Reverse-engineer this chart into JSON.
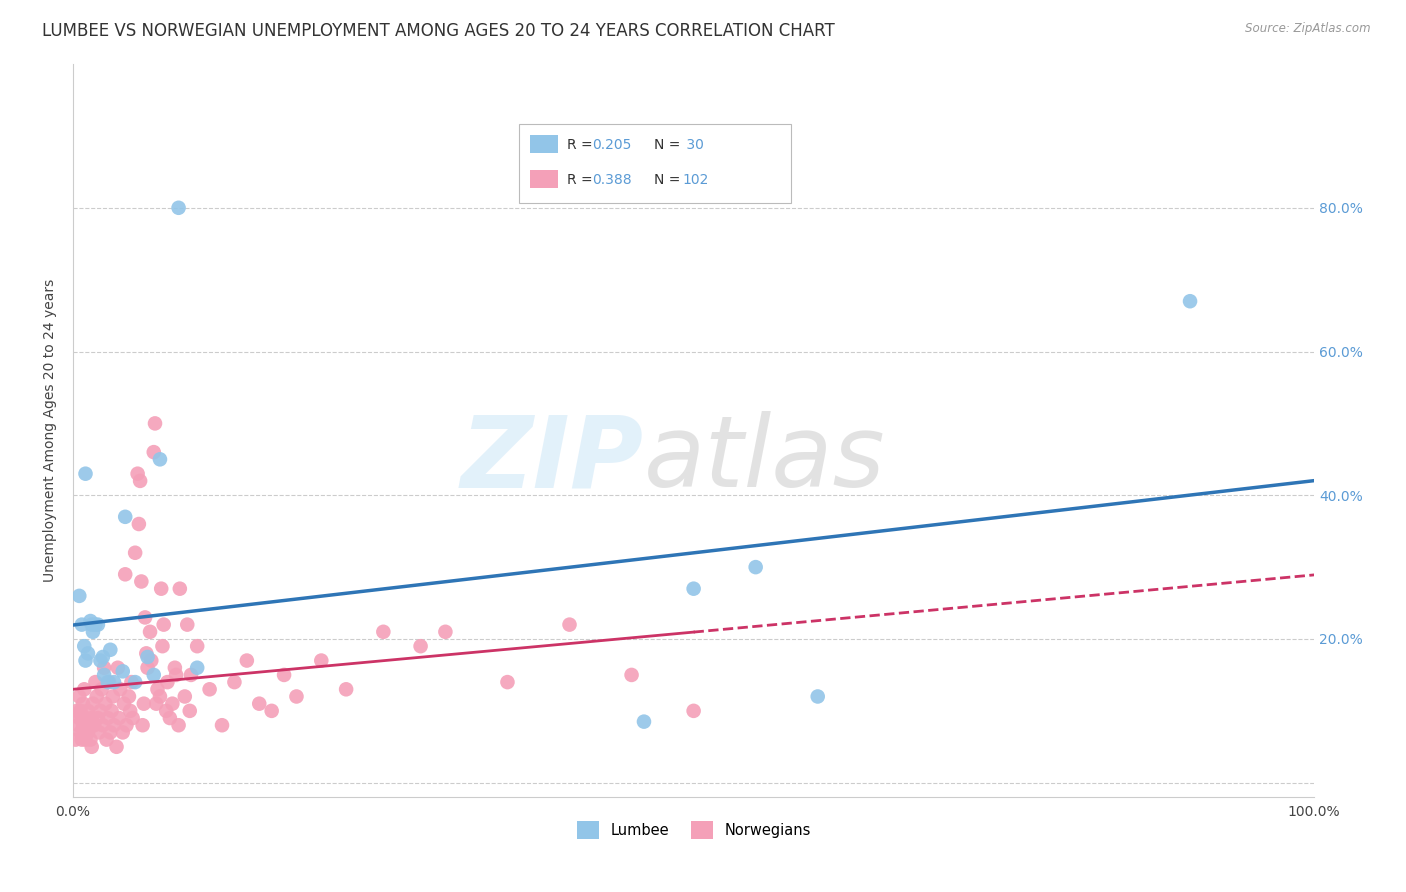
{
  "title": "LUMBEE VS NORWEGIAN UNEMPLOYMENT AMONG AGES 20 TO 24 YEARS CORRELATION CHART",
  "source": "Source: ZipAtlas.com",
  "ylabel": "Unemployment Among Ages 20 to 24 years",
  "lumbee_color": "#92C5E8",
  "norw_color": "#F4A0B8",
  "lumbee_line_color": "#2E75B6",
  "norw_line_color": "#CC3366",
  "background_color": "#ffffff",
  "grid_color": "#cccccc",
  "title_fontsize": 12,
  "axis_fontsize": 10,
  "tick_fontsize": 10,
  "lumbee_points": [
    [
      0.5,
      26.0
    ],
    [
      0.7,
      22.0
    ],
    [
      0.9,
      19.0
    ],
    [
      1.0,
      17.0
    ],
    [
      1.2,
      18.0
    ],
    [
      1.4,
      22.5
    ],
    [
      1.5,
      22.0
    ],
    [
      1.6,
      21.0
    ],
    [
      1.8,
      22.0
    ],
    [
      2.0,
      22.0
    ],
    [
      2.2,
      17.0
    ],
    [
      2.4,
      17.5
    ],
    [
      2.5,
      15.0
    ],
    [
      2.8,
      14.0
    ],
    [
      3.0,
      18.5
    ],
    [
      3.3,
      14.0
    ],
    [
      4.0,
      15.5
    ],
    [
      4.2,
      37.0
    ],
    [
      5.0,
      14.0
    ],
    [
      6.0,
      17.5
    ],
    [
      6.5,
      15.0
    ],
    [
      7.0,
      45.0
    ],
    [
      8.5,
      80.0
    ],
    [
      10.0,
      16.0
    ],
    [
      1.0,
      43.0
    ],
    [
      46.0,
      8.5
    ],
    [
      50.0,
      27.0
    ],
    [
      55.0,
      30.0
    ],
    [
      60.0,
      12.0
    ],
    [
      90.0,
      67.0
    ]
  ],
  "norw_points": [
    [
      0.2,
      6.0
    ],
    [
      0.3,
      10.0
    ],
    [
      0.4,
      8.0
    ],
    [
      0.5,
      12.0
    ],
    [
      0.5,
      9.0
    ],
    [
      0.6,
      7.0
    ],
    [
      0.6,
      10.0
    ],
    [
      0.7,
      9.0
    ],
    [
      0.7,
      6.0
    ],
    [
      0.8,
      8.0
    ],
    [
      0.8,
      11.0
    ],
    [
      0.9,
      7.0
    ],
    [
      0.9,
      13.0
    ],
    [
      1.0,
      9.0
    ],
    [
      1.0,
      6.0
    ],
    [
      1.1,
      8.0
    ],
    [
      1.2,
      10.0
    ],
    [
      1.2,
      7.0
    ],
    [
      1.3,
      8.0
    ],
    [
      1.4,
      6.0
    ],
    [
      1.5,
      9.0
    ],
    [
      1.5,
      5.0
    ],
    [
      1.6,
      11.0
    ],
    [
      1.7,
      8.0
    ],
    [
      1.8,
      14.0
    ],
    [
      1.9,
      12.0
    ],
    [
      2.0,
      9.0
    ],
    [
      2.1,
      7.0
    ],
    [
      2.2,
      10.0
    ],
    [
      2.3,
      13.0
    ],
    [
      2.4,
      8.0
    ],
    [
      2.5,
      16.0
    ],
    [
      2.6,
      11.0
    ],
    [
      2.7,
      6.0
    ],
    [
      2.8,
      9.0
    ],
    [
      2.9,
      14.0
    ],
    [
      3.0,
      7.0
    ],
    [
      3.1,
      10.0
    ],
    [
      3.2,
      12.0
    ],
    [
      3.3,
      8.0
    ],
    [
      3.5,
      5.0
    ],
    [
      3.6,
      16.0
    ],
    [
      3.7,
      9.0
    ],
    [
      3.8,
      13.0
    ],
    [
      4.0,
      7.0
    ],
    [
      4.1,
      11.0
    ],
    [
      4.2,
      29.0
    ],
    [
      4.3,
      8.0
    ],
    [
      4.5,
      12.0
    ],
    [
      4.6,
      10.0
    ],
    [
      4.7,
      14.0
    ],
    [
      4.8,
      9.0
    ],
    [
      5.0,
      32.0
    ],
    [
      5.2,
      43.0
    ],
    [
      5.3,
      36.0
    ],
    [
      5.4,
      42.0
    ],
    [
      5.5,
      28.0
    ],
    [
      5.6,
      8.0
    ],
    [
      5.7,
      11.0
    ],
    [
      5.8,
      23.0
    ],
    [
      5.9,
      18.0
    ],
    [
      6.0,
      16.0
    ],
    [
      6.2,
      21.0
    ],
    [
      6.3,
      17.0
    ],
    [
      6.5,
      46.0
    ],
    [
      6.6,
      50.0
    ],
    [
      6.7,
      11.0
    ],
    [
      6.8,
      13.0
    ],
    [
      7.0,
      12.0
    ],
    [
      7.1,
      27.0
    ],
    [
      7.2,
      19.0
    ],
    [
      7.3,
      22.0
    ],
    [
      7.5,
      10.0
    ],
    [
      7.6,
      14.0
    ],
    [
      7.8,
      9.0
    ],
    [
      8.0,
      11.0
    ],
    [
      8.2,
      16.0
    ],
    [
      8.3,
      15.0
    ],
    [
      8.5,
      8.0
    ],
    [
      8.6,
      27.0
    ],
    [
      9.0,
      12.0
    ],
    [
      9.2,
      22.0
    ],
    [
      9.4,
      10.0
    ],
    [
      9.5,
      15.0
    ],
    [
      10.0,
      19.0
    ],
    [
      11.0,
      13.0
    ],
    [
      12.0,
      8.0
    ],
    [
      13.0,
      14.0
    ],
    [
      14.0,
      17.0
    ],
    [
      15.0,
      11.0
    ],
    [
      16.0,
      10.0
    ],
    [
      17.0,
      15.0
    ],
    [
      18.0,
      12.0
    ],
    [
      20.0,
      17.0
    ],
    [
      22.0,
      13.0
    ],
    [
      25.0,
      21.0
    ],
    [
      28.0,
      19.0
    ],
    [
      30.0,
      21.0
    ],
    [
      35.0,
      14.0
    ],
    [
      40.0,
      22.0
    ],
    [
      45.0,
      15.0
    ],
    [
      50.0,
      10.0
    ]
  ],
  "xlim": [
    0,
    100
  ],
  "ylim": [
    0,
    100
  ],
  "xtick_positions": [
    0,
    20,
    40,
    60,
    80,
    100
  ],
  "xtick_labels": [
    "0.0%",
    "",
    "",
    "",
    "",
    "100.0%"
  ],
  "ytick_positions": [
    0,
    20,
    40,
    60,
    80
  ],
  "ytick_labels_right": [
    "",
    "20.0%",
    "40.0%",
    "60.0%",
    "80.0%"
  ]
}
